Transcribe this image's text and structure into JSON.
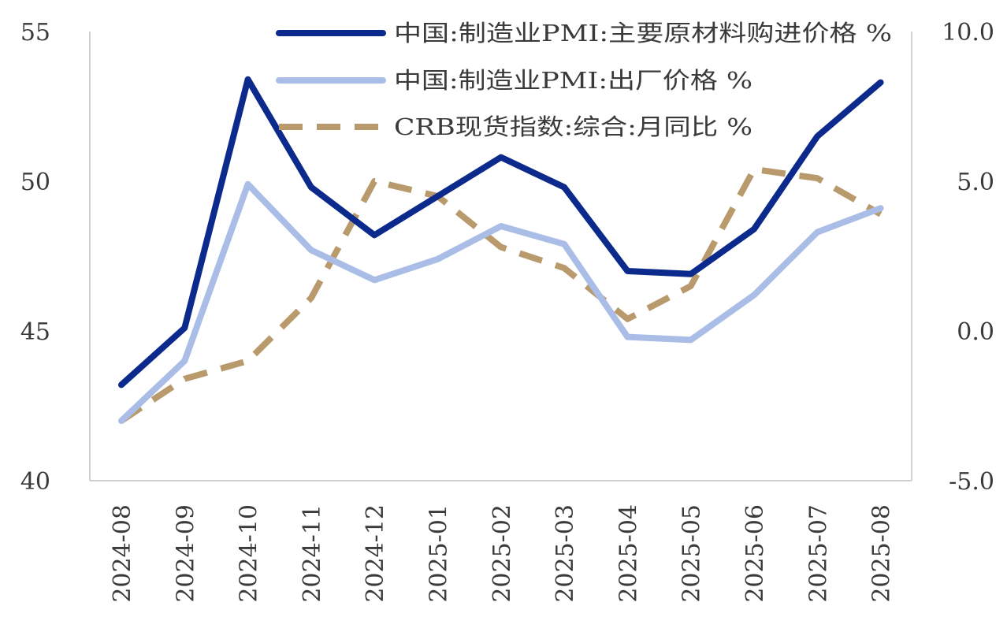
{
  "chart_data": {
    "type": "line",
    "title": "",
    "xlabel": "",
    "ylabel": "",
    "grid": false,
    "legend_position": "top-right",
    "categories": [
      "2024-08",
      "2024-09",
      "2024-10",
      "2024-11",
      "2024-12",
      "2025-01",
      "2025-02",
      "2025-03",
      "2025-04",
      "2025-05",
      "2025-06",
      "2025-07",
      "2025-08"
    ],
    "y_left": {
      "min": 40,
      "max": 55,
      "ticks": [
        "40",
        "45",
        "50",
        "55"
      ]
    },
    "y_right": {
      "min": -5.0,
      "max": 10.0,
      "ticks": [
        "-5.0",
        "0.0",
        "5.0",
        "10.0"
      ]
    },
    "series": [
      {
        "name": "中国:制造业PMI:主要原材料购进价格 %",
        "axis": "left",
        "style": "solid",
        "color": "#0b2a8c",
        "values": [
          43.2,
          45.1,
          53.4,
          49.8,
          48.2,
          49.5,
          50.8,
          49.8,
          47.0,
          46.9,
          48.4,
          51.5,
          53.3
        ]
      },
      {
        "name": "中国:制造业PMI:出厂价格 %",
        "axis": "left",
        "style": "solid",
        "color": "#a9bde6",
        "values": [
          42.0,
          44.0,
          49.9,
          47.7,
          46.7,
          47.4,
          48.5,
          47.9,
          44.8,
          44.7,
          46.2,
          48.3,
          49.1
        ]
      },
      {
        "name": "CRB现货指数:综合:月同比 %",
        "axis": "right",
        "style": "dashed",
        "color": "#b99a6c",
        "values": [
          -3.0,
          -1.6,
          -1.0,
          1.1,
          5.0,
          4.5,
          2.8,
          2.1,
          0.4,
          1.5,
          5.4,
          5.1,
          3.9
        ]
      }
    ]
  }
}
